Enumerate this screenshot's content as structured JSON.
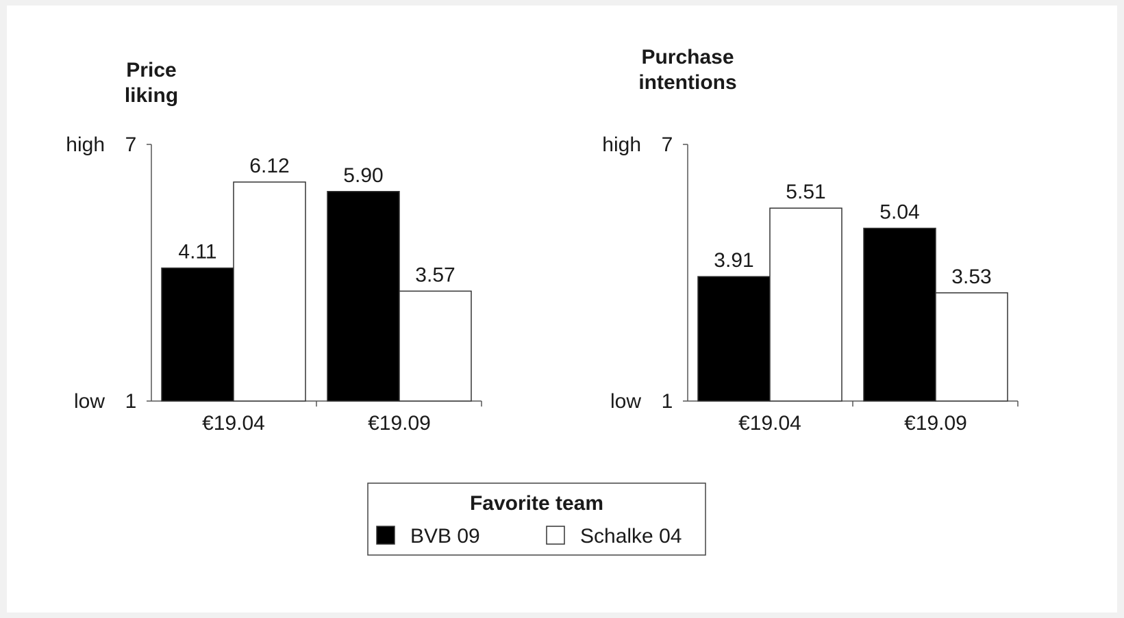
{
  "chart_data": [
    {
      "type": "bar",
      "title_lines": [
        "Price",
        "liking"
      ],
      "y_min_label": "low",
      "y_max_label": "high",
      "y_ticks": [
        "1",
        "7"
      ],
      "ylim": [
        1,
        7
      ],
      "categories": [
        "€19.04",
        "€19.09"
      ],
      "series": [
        {
          "name": "BVB 09",
          "values": [
            4.11,
            5.9
          ],
          "value_labels": [
            "4.11",
            "5.90"
          ],
          "fill": "#000000"
        },
        {
          "name": "Schalke 04",
          "values": [
            6.12,
            3.57
          ],
          "value_labels": [
            "6.12",
            "3.57"
          ],
          "fill": "#ffffff"
        }
      ]
    },
    {
      "type": "bar",
      "title_lines": [
        "Purchase",
        "intentions"
      ],
      "y_min_label": "low",
      "y_max_label": "high",
      "y_ticks": [
        "1",
        "7"
      ],
      "ylim": [
        1,
        7
      ],
      "categories": [
        "€19.04",
        "€19.09"
      ],
      "series": [
        {
          "name": "BVB 09",
          "values": [
            3.91,
            5.04
          ],
          "value_labels": [
            "3.91",
            "5.04"
          ],
          "fill": "#000000"
        },
        {
          "name": "Schalke 04",
          "values": [
            5.51,
            3.53
          ],
          "value_labels": [
            "5.51",
            "3.53"
          ],
          "fill": "#ffffff"
        }
      ]
    }
  ],
  "legend": {
    "title": "Favorite team",
    "items": [
      {
        "label": "BVB 09",
        "fill": "#000000"
      },
      {
        "label": "Schalke 04",
        "fill": "#ffffff"
      }
    ]
  }
}
